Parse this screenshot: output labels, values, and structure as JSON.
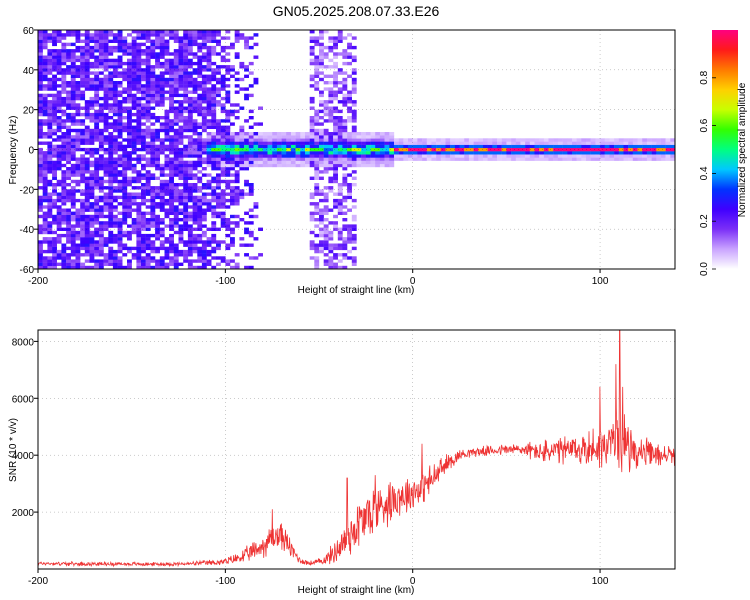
{
  "title": "GN05.2025.208.07.33.E26",
  "chart_data": [
    {
      "type": "heatmap",
      "xlabel": "Height of straight line (km)",
      "ylabel": "Frequency (Hz)",
      "xlim": [
        -200,
        140
      ],
      "ylim": [
        -60,
        60
      ],
      "xticks": [
        -200,
        -100,
        0,
        100
      ],
      "yticks": [
        -60,
        -40,
        -20,
        0,
        20,
        40,
        60
      ],
      "colorbar": {
        "label": "Normalized spectral amplitude",
        "range": [
          0,
          1
        ],
        "ticks": [
          0.0,
          0.2,
          0.4,
          0.6,
          0.8
        ],
        "tick_labels": [
          "0.0",
          "0.2",
          "0.4",
          "0.6",
          "0.8"
        ],
        "colormap": [
          "#ffffff",
          "#c9a3ff",
          "#7b2ff7",
          "#3f00ff",
          "#0033ff",
          "#00c8ff",
          "#00ff80",
          "#33ff00",
          "#c8ff00",
          "#ffd000",
          "#ff7a00",
          "#ff1a1a",
          "#ff0080"
        ]
      },
      "features": {
        "noise_region_x": [
          -200,
          -80
        ],
        "noise_bands_x": [
          [
            -55,
            -30
          ]
        ],
        "signal_band_x": [
          -110,
          140
        ],
        "signal_center_frequency_hz": 0,
        "signal_strong_x": [
          -10,
          140
        ]
      },
      "grid": true
    },
    {
      "type": "line",
      "xlabel": "Height of straight line (km)",
      "ylabel": "SNR (10 * v/v)",
      "xlim": [
        -200,
        140
      ],
      "ylim": [
        0,
        8400
      ],
      "xticks": [
        -200,
        -100,
        0,
        100
      ],
      "yticks": [
        2000,
        4000,
        6000,
        8000
      ],
      "color": "#ee3333",
      "series": [
        {
          "x": [
            -200,
            -180,
            -160,
            -140,
            -120,
            -100,
            -90,
            -80,
            -75,
            -70,
            -65,
            -60,
            -55,
            -50,
            -45,
            -40,
            -35,
            -30,
            -25,
            -20,
            -15,
            -10,
            -5,
            0,
            5,
            10,
            15,
            20,
            25,
            30,
            40,
            50,
            60,
            70,
            80,
            90,
            100,
            105,
            110,
            115,
            120,
            130,
            140
          ],
          "y": [
            200,
            180,
            180,
            170,
            180,
            250,
            450,
            800,
            1100,
            1200,
            700,
            300,
            200,
            250,
            400,
            700,
            1100,
            1500,
            1800,
            2100,
            2300,
            2500,
            2600,
            2700,
            2900,
            3100,
            3500,
            3800,
            4000,
            4100,
            4150,
            4200,
            4200,
            4100,
            4150,
            4200,
            4300,
            4400,
            4600,
            4350,
            4100,
            4000,
            4000
          ],
          "noise_amplitude": [
            80,
            80,
            80,
            80,
            80,
            150,
            300,
            500,
            600,
            600,
            400,
            150,
            100,
            150,
            300,
            600,
            900,
            1100,
            1100,
            1100,
            1000,
            900,
            800,
            800,
            700,
            700,
            500,
            350,
            250,
            200,
            200,
            250,
            300,
            500,
            600,
            700,
            900,
            1100,
            1400,
            1000,
            700,
            500,
            400
          ],
          "spikes": [
            {
              "x": 110.5,
              "y": 8400
            },
            {
              "x": 108.5,
              "y": 7200
            },
            {
              "x": 112,
              "y": 6400
            },
            {
              "x": 100,
              "y": 6400
            },
            {
              "x": -75,
              "y": 2100
            },
            {
              "x": -35,
              "y": 3200
            },
            {
              "x": -20,
              "y": 3300
            },
            {
              "x": 5,
              "y": 4400
            }
          ]
        }
      ],
      "grid": true
    }
  ]
}
